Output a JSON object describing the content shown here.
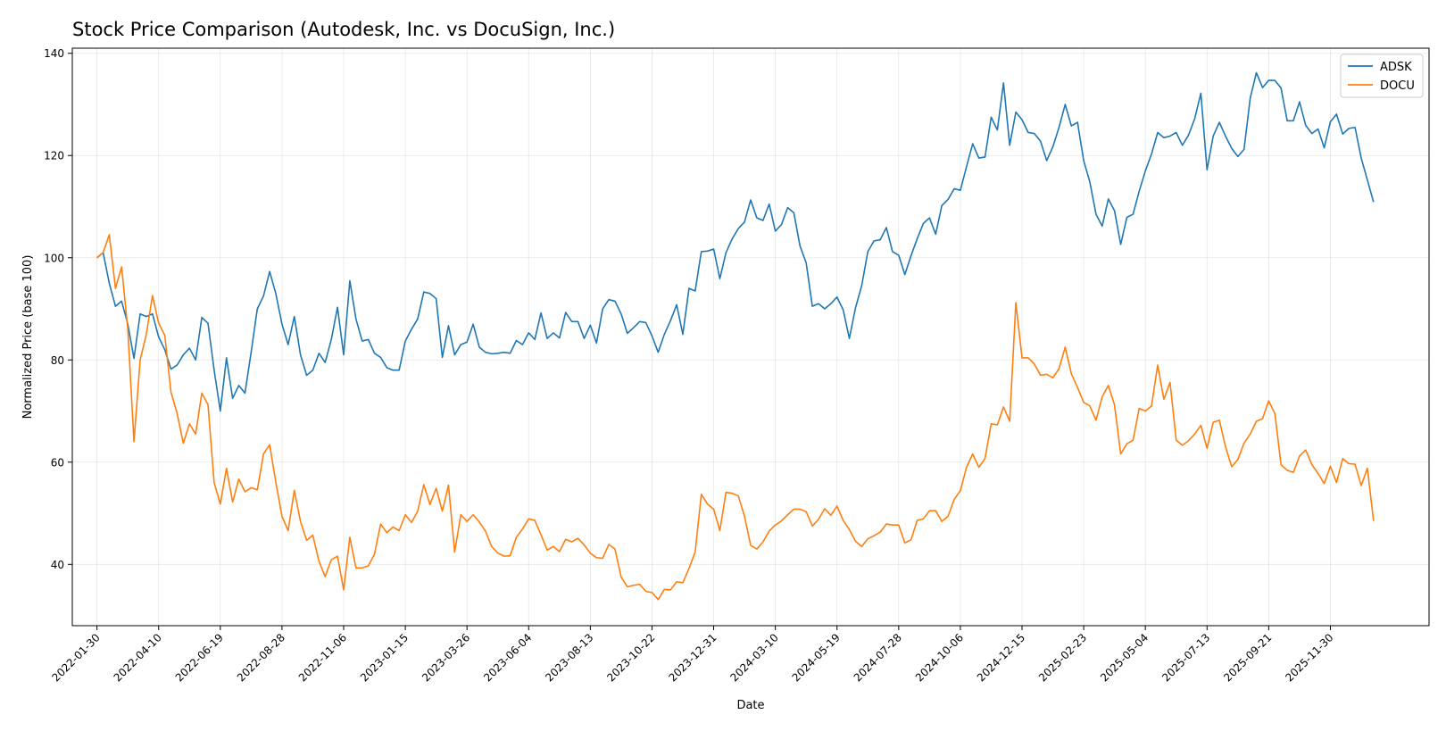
{
  "chart_data": {
    "type": "line",
    "title": "Stock Price Comparison (Autodesk, Inc. vs DocuSign, Inc.)",
    "xlabel": "Date",
    "ylabel": "Normalized Price (base 100)",
    "ylim": [
      28,
      141
    ],
    "yticks": [
      40,
      60,
      80,
      100,
      120,
      140
    ],
    "xlim": [
      "2022-01-02",
      "2026-03-22"
    ],
    "xticks": [
      "2022-01-30",
      "2022-04-10",
      "2022-06-19",
      "2022-08-28",
      "2022-11-06",
      "2023-01-15",
      "2023-03-26",
      "2023-06-04",
      "2023-08-13",
      "2023-10-22",
      "2023-12-31",
      "2024-03-10",
      "2024-05-19",
      "2024-07-28",
      "2024-10-06",
      "2024-12-15",
      "2025-02-23",
      "2025-05-04",
      "2025-07-13",
      "2025-09-21",
      "2025-11-30"
    ],
    "grid": true,
    "legend_position": "top-right",
    "start_date": "2022-01-30",
    "interval_days": 7,
    "series": [
      {
        "name": "ADSK",
        "color": "#1f77b4",
        "values": [
          100,
          101,
          95,
          90.5,
          91.5,
          87,
          80.3,
          89,
          88.5,
          89,
          84.5,
          82,
          78.2,
          79,
          81,
          82.3,
          80,
          88.3,
          87.2,
          78,
          70,
          80.4,
          72.5,
          75,
          73.5,
          81.5,
          90,
          92.5,
          97.3,
          93,
          87,
          83,
          88.5,
          81,
          77,
          78,
          81.3,
          79.5,
          84,
          90.3,
          81,
          95.5,
          88,
          83.7,
          84,
          81.3,
          80.5,
          78.5,
          78,
          78,
          83.7,
          86,
          88,
          93.3,
          93,
          92,
          80.5,
          86.7,
          81,
          83,
          83.5,
          87,
          82.5,
          81.5,
          81.2,
          81.3,
          81.5,
          81.3,
          83.8,
          83,
          85.3,
          84,
          89.2,
          84.2,
          85.3,
          84.3,
          89.3,
          87.5,
          87.5,
          84.2,
          86.8,
          83.3,
          90,
          91.8,
          91.5,
          89,
          85.2,
          86.3,
          87.5,
          87.3,
          84.7,
          81.5,
          85,
          87.7,
          90.8,
          85,
          94,
          93.5,
          101.2,
          101.3,
          101.7,
          95.9,
          101,
          103.7,
          105.7,
          107,
          111.3,
          107.8,
          107.3,
          110.5,
          105.2,
          106.5,
          109.8,
          108.8,
          102.3,
          99,
          90.5,
          91,
          90,
          91,
          92.3,
          89.8,
          84.2,
          90.2,
          94.5,
          101.2,
          103.3,
          103.5,
          105.9,
          101.2,
          100.5,
          96.7,
          100.4,
          103.7,
          106.7,
          107.8,
          104.6,
          110.2,
          111.4,
          113.5,
          113.2,
          117.8,
          122.3,
          119.5,
          119.7,
          127.5,
          125,
          134.2,
          122,
          128.5,
          127,
          124.5,
          124.3,
          122.8,
          119,
          121.7,
          125.5,
          130,
          125.8,
          126.5,
          119,
          114.8,
          108.5,
          106.2,
          111.5,
          109.2,
          102.6,
          107.9,
          108.5,
          113,
          117,
          120.3,
          124.5,
          123.5,
          123.8,
          124.5,
          122,
          124,
          127.2,
          132.2,
          117.2,
          123.8,
          126.5,
          123.8,
          121.4,
          119.8,
          121.2,
          131.2,
          136.2,
          133.3,
          134.7,
          134.7,
          133.2,
          126.8,
          126.8,
          130.5,
          125.9,
          124.3,
          125.2,
          121.5,
          126.6,
          128.1,
          124.2,
          125.3,
          125.5,
          119.5,
          115.2,
          110.9
        ]
      },
      {
        "name": "DOCU",
        "color": "#ff7f0e",
        "values": [
          100,
          101,
          104.5,
          94,
          98.2,
          86,
          64,
          80,
          85,
          92.6,
          87.2,
          84.8,
          73.7,
          69.5,
          63.7,
          67.5,
          65.5,
          73.5,
          71.3,
          56,
          51.8,
          58.8,
          52.2,
          56.7,
          54.2,
          55,
          54.6,
          61.6,
          63.4,
          56.1,
          49.4,
          46.6,
          54.5,
          48.4,
          44.7,
          45.7,
          40.6,
          37.6,
          40.9,
          41.6,
          35,
          45.3,
          39.3,
          39.3,
          39.7,
          42,
          47.9,
          46.2,
          47.3,
          46.6,
          49.7,
          48.2,
          50.4,
          55.6,
          51.7,
          54.9,
          50.4,
          55.5,
          42.4,
          49.7,
          48.4,
          49.7,
          48.3,
          46.5,
          43.5,
          42.2,
          41.6,
          41.7,
          45.3,
          46.9,
          48.9,
          48.6,
          45.8,
          42.8,
          43.5,
          42.5,
          44.9,
          44.4,
          45.1,
          43.8,
          42.2,
          41.3,
          41.2,
          43.9,
          43,
          37.5,
          35.6,
          35.9,
          36.1,
          34.7,
          34.5,
          33.1,
          35.1,
          35,
          36.6,
          36.4,
          39.2,
          42.4,
          53.7,
          51.8,
          50.8,
          46.6,
          54.1,
          53.9,
          53.4,
          49.4,
          43.7,
          43,
          44.4,
          46.5,
          47.7,
          48.5,
          49.7,
          50.8,
          50.8,
          50.3,
          47.5,
          48.8,
          50.9,
          49.6,
          51.4,
          48.6,
          46.8,
          44.5,
          43.5,
          45,
          45.6,
          46.3,
          47.9,
          47.7,
          47.7,
          44.2,
          44.8,
          48.6,
          48.9,
          50.5,
          50.5,
          48.4,
          49.4,
          52.7,
          54.4,
          59,
          61.6,
          59,
          60.7,
          67.5,
          67.3,
          70.8,
          68,
          91.2,
          80.4,
          80.4,
          79.2,
          77,
          77.2,
          76.5,
          78.3,
          82.5,
          77.3,
          74.6,
          71.7,
          71,
          68.2,
          72.8,
          75,
          71.2,
          61.6,
          63.6,
          64.3,
          70.5,
          70,
          71,
          79,
          72.3,
          75.6,
          64.3,
          63.3,
          64.2,
          65.5,
          67.2,
          62.7,
          67.8,
          68.2,
          63,
          59.1,
          60.5,
          63.7,
          65.5,
          68,
          68.5,
          72,
          69.5,
          59.5,
          58.4,
          58,
          61.2,
          62.4,
          59.5,
          57.8,
          55.8,
          59.2,
          56,
          60.7,
          59.7,
          59.6,
          55.4,
          58.8,
          48.5
        ]
      }
    ]
  }
}
